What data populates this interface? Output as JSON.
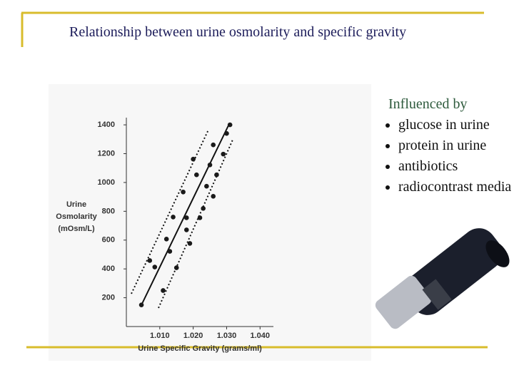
{
  "title": "Relationship between urine osmolarity and specific gravity",
  "side": {
    "heading": "Influenced by",
    "items": [
      "glucose in urine",
      "protein in urine",
      "antibiotics",
      "radiocontrast media"
    ]
  },
  "chart_data": {
    "type": "scatter",
    "x_label": "Urine Specific Gravity (grams/ml)",
    "y_label": [
      "Urine",
      "Osmolarity",
      "(mOsm/L)"
    ],
    "color": "#1a1a1a",
    "x": [
      1.0045,
      1.007,
      1.0085,
      1.011,
      1.012,
      1.013,
      1.014,
      1.015,
      1.017,
      1.018,
      1.018,
      1.019,
      1.02,
      1.021,
      1.022,
      1.023,
      1.024,
      1.025,
      1.026,
      1.026,
      1.027,
      1.029,
      1.03,
      1.031
    ],
    "values": [
      150,
      458,
      413,
      250,
      607,
      522,
      760,
      408,
      934,
      755,
      671,
      577,
      1162,
      1053,
      755,
      820,
      974,
      1122,
      904,
      1261,
      1053,
      1197,
      1340,
      1400
    ],
    "xlim": [
      1.0,
      1.044
    ],
    "xticks": [
      {
        "value": 1.01,
        "label": "1.010"
      },
      {
        "value": 1.02,
        "label": "1.020"
      },
      {
        "value": 1.03,
        "label": "1.030"
      },
      {
        "value": 1.04,
        "label": "1.040"
      }
    ],
    "ylim": [
      0,
      1450
    ],
    "yticks": [
      200,
      400,
      600,
      800,
      1000,
      1200,
      1400
    ]
  }
}
